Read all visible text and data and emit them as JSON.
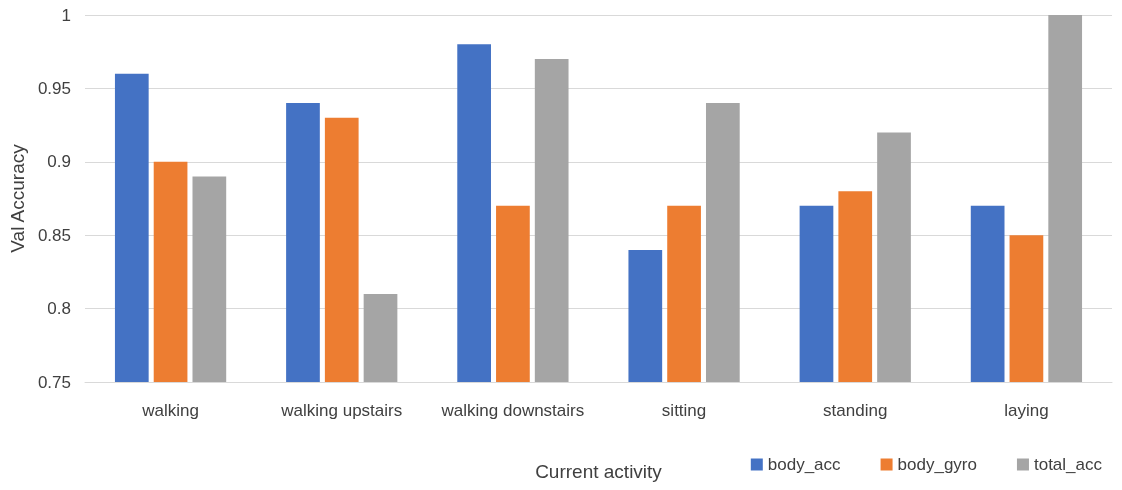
{
  "chart_data": {
    "type": "bar",
    "xlabel": "Current activity",
    "ylabel": "Val Accuracy",
    "categories": [
      "walking",
      "walking upstairs",
      "walking downstairs",
      "sitting",
      "standing",
      "laying"
    ],
    "series": [
      {
        "name": "body_acc",
        "color": "#4472c4",
        "values": [
          0.96,
          0.94,
          0.98,
          0.84,
          0.87,
          0.87
        ]
      },
      {
        "name": "body_gyro",
        "color": "#ed7d31",
        "values": [
          0.9,
          0.93,
          0.87,
          0.87,
          0.88,
          0.85
        ]
      },
      {
        "name": "total_acc",
        "color": "#a5a5a5",
        "values": [
          0.89,
          0.81,
          0.97,
          0.94,
          0.92,
          1.0
        ]
      }
    ],
    "ylim": [
      0.75,
      1
    ],
    "yticks": [
      0.75,
      0.8,
      0.85,
      0.9,
      0.95,
      1
    ],
    "grid": "y",
    "legend": "bottom right"
  }
}
